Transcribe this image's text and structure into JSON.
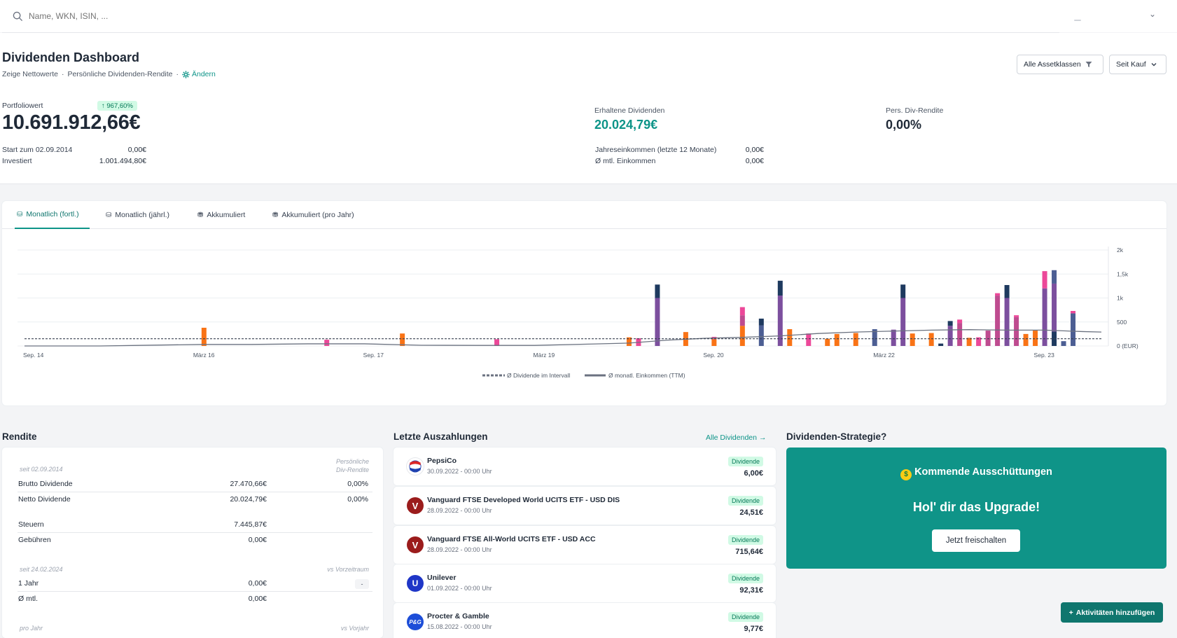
{
  "search": {
    "placeholder": "Name, WKN, ISIN, ..."
  },
  "header": {
    "title": "Dividenden Dashboard",
    "subtitle_part1": "Zeige Nettowerte",
    "subtitle_sep1": "·",
    "subtitle_part2": "Persönliche Dividenden-Rendite",
    "subtitle_sep2": "·",
    "change_link": "Ändern",
    "filter_assets": "Alle Assetklassen",
    "filter_period": "Seit Kauf"
  },
  "summary": {
    "portfolio_label": "Portfoliowert",
    "portfolio_badge": "↑ 967,60%",
    "portfolio_value": "10.691.912,66€",
    "start_label": "Start zum 02.09.2014",
    "start_value": "0,00€",
    "invested_label": "Investiert",
    "invested_value": "1.001.494,80€",
    "received_label": "Erhaltene Dividenden",
    "received_value": "20.024,79€",
    "yield_label": "Pers. Div-Rendite",
    "yield_value": "0,00%",
    "annual_label": "Jahreseinkommen (letzte 12 Monate)",
    "annual_value": "0,00€",
    "monthly_label": "Ø mtl. Einkommen",
    "monthly_value": "0,00€"
  },
  "tabs": [
    {
      "label": "Monatlich (fortl.)",
      "active": true
    },
    {
      "label": "Monatlich (jährl.)",
      "active": false
    },
    {
      "label": "Akkumuliert",
      "active": false
    },
    {
      "label": "Akkumuliert (pro Jahr)",
      "active": false
    }
  ],
  "chart_data": {
    "type": "bar",
    "x_tick_labels": [
      "Sep. 14",
      "März 16",
      "Sep. 17",
      "März 19",
      "Sep. 20",
      "März 22",
      "Sep. 23"
    ],
    "y_tick_labels": [
      "2k",
      "1,5k",
      "1k",
      "500",
      "0 (EUR)"
    ],
    "ylim": [
      0,
      2000
    ],
    "grid": true,
    "legend_position": "bottom",
    "legend": [
      "Ø Dividende im Intervall",
      "Ø monatl. Einkommen (TTM)"
    ],
    "avg_dividend_line": 150,
    "months_total": 114,
    "series_colors": [
      "#f97316",
      "#ec4899",
      "#be4b8f",
      "#7c4f9e",
      "#4c5e93",
      "#1e3a5f"
    ],
    "bars": [
      {
        "i": 19,
        "stack": [
          [
            0,
            380
          ]
        ]
      },
      {
        "i": 32,
        "stack": [
          [
            1,
            130
          ]
        ]
      },
      {
        "i": 40,
        "stack": [
          [
            0,
            260
          ]
        ]
      },
      {
        "i": 50,
        "stack": [
          [
            1,
            140
          ]
        ]
      },
      {
        "i": 64,
        "stack": [
          [
            0,
            180
          ]
        ]
      },
      {
        "i": 65,
        "stack": [
          [
            1,
            160
          ]
        ]
      },
      {
        "i": 67,
        "stack": [
          [
            3,
            1000
          ],
          [
            5,
            280
          ]
        ]
      },
      {
        "i": 70,
        "stack": [
          [
            0,
            290
          ]
        ]
      },
      {
        "i": 73,
        "stack": [
          [
            0,
            140
          ],
          [
            1,
            50
          ]
        ]
      },
      {
        "i": 76,
        "stack": [
          [
            0,
            420
          ],
          [
            2,
            220
          ],
          [
            1,
            170
          ]
        ]
      },
      {
        "i": 78,
        "stack": [
          [
            4,
            430
          ],
          [
            5,
            140
          ]
        ]
      },
      {
        "i": 80,
        "stack": [
          [
            3,
            1050
          ],
          [
            5,
            310
          ]
        ]
      },
      {
        "i": 81,
        "stack": [
          [
            0,
            350
          ]
        ]
      },
      {
        "i": 83,
        "stack": [
          [
            1,
            260
          ]
        ]
      },
      {
        "i": 85,
        "stack": [
          [
            0,
            150
          ]
        ]
      },
      {
        "i": 86,
        "stack": [
          [
            0,
            250
          ]
        ]
      },
      {
        "i": 88,
        "stack": [
          [
            0,
            270
          ]
        ]
      },
      {
        "i": 90,
        "stack": [
          [
            4,
            350
          ]
        ]
      },
      {
        "i": 92,
        "stack": [
          [
            3,
            340
          ]
        ]
      },
      {
        "i": 93,
        "stack": [
          [
            3,
            1000
          ],
          [
            5,
            280
          ]
        ]
      },
      {
        "i": 94,
        "stack": [
          [
            0,
            260
          ]
        ]
      },
      {
        "i": 96,
        "stack": [
          [
            0,
            270
          ]
        ]
      },
      {
        "i": 97,
        "stack": [
          [
            5,
            50
          ]
        ]
      },
      {
        "i": 98,
        "stack": [
          [
            3,
            420
          ],
          [
            5,
            100
          ]
        ]
      },
      {
        "i": 99,
        "stack": [
          [
            2,
            480
          ],
          [
            1,
            70
          ]
        ]
      },
      {
        "i": 100,
        "stack": [
          [
            0,
            170
          ]
        ]
      },
      {
        "i": 101,
        "stack": [
          [
            1,
            180
          ]
        ]
      },
      {
        "i": 102,
        "stack": [
          [
            2,
            320
          ]
        ]
      },
      {
        "i": 103,
        "stack": [
          [
            2,
            1050
          ],
          [
            1,
            50
          ]
        ]
      },
      {
        "i": 104,
        "stack": [
          [
            3,
            1000
          ],
          [
            5,
            270
          ]
        ]
      },
      {
        "i": 105,
        "stack": [
          [
            2,
            600
          ],
          [
            1,
            40
          ]
        ]
      },
      {
        "i": 106,
        "stack": [
          [
            0,
            250
          ]
        ]
      },
      {
        "i": 107,
        "stack": [
          [
            0,
            320
          ]
        ]
      },
      {
        "i": 108,
        "stack": [
          [
            3,
            1200
          ],
          [
            1,
            360
          ]
        ]
      },
      {
        "i": 109,
        "stack": [
          [
            5,
            300
          ],
          [
            3,
            1000
          ],
          [
            4,
            280
          ]
        ]
      },
      {
        "i": 110,
        "stack": [
          [
            4,
            100
          ]
        ]
      },
      {
        "i": 111,
        "stack": [
          [
            4,
            680
          ],
          [
            1,
            50
          ]
        ]
      }
    ],
    "ttm_line": [
      [
        0,
        0
      ],
      [
        8,
        0
      ],
      [
        12,
        12
      ],
      [
        19,
        32
      ],
      [
        24,
        32
      ],
      [
        30,
        45
      ],
      [
        36,
        45
      ],
      [
        42,
        15
      ],
      [
        48,
        12
      ],
      [
        54,
        12
      ],
      [
        60,
        40
      ],
      [
        64,
        60
      ],
      [
        68,
        120
      ],
      [
        72,
        160
      ],
      [
        76,
        180
      ],
      [
        80,
        210
      ],
      [
        84,
        260
      ],
      [
        88,
        290
      ],
      [
        92,
        310
      ],
      [
        96,
        330
      ],
      [
        100,
        340
      ],
      [
        104,
        330
      ],
      [
        108,
        330
      ],
      [
        112,
        300
      ],
      [
        114,
        290
      ]
    ]
  },
  "rendite": {
    "title": "Rendite",
    "since_label": "seit 02.09.2014",
    "col_header_line1": "Persönliche",
    "col_header_line2": "Div-Rendite",
    "brutto_label": "Brutto Dividende",
    "brutto_value": "27.470,66€",
    "brutto_pct": "0,00%",
    "netto_label": "Netto Dividende",
    "netto_value": "20.024,79€",
    "netto_pct": "0,00%",
    "tax_label": "Steuern",
    "tax_value": "7.445,87€",
    "fees_label": "Gebühren",
    "fees_value": "0,00€",
    "since2_label": "seit 24.02.2024",
    "vs_period": "vs Vorzeitraum",
    "year_label": "1 Jahr",
    "year_value": "0,00€",
    "year_pill": "-",
    "month_label": "Ø mtl.",
    "month_value": "0,00€",
    "per_year_label": "pro Jahr",
    "vs_prev_year": "vs Vorjahr"
  },
  "payouts": {
    "title": "Letzte Auszahlungen",
    "all_link": "Alle Dividenden",
    "items": [
      {
        "name": "PepsiCo",
        "date": "30.09.2022 - 00:00 Uhr",
        "badge": "Dividende",
        "amount": "6,00€",
        "logo": "pepsi-logo-icon"
      },
      {
        "name": "Vanguard FTSE Developed World UCITS ETF - USD DIS",
        "date": "28.09.2022 - 00:00 Uhr",
        "badge": "Dividende",
        "amount": "24,51€",
        "logo": "vanguard-logo-icon"
      },
      {
        "name": "Vanguard FTSE All-World UCITS ETF - USD ACC",
        "date": "28.09.2022 - 00:00 Uhr",
        "badge": "Dividende",
        "amount": "715,64€",
        "logo": "vanguard-logo-icon"
      },
      {
        "name": "Unilever",
        "date": "01.09.2022 - 00:00 Uhr",
        "badge": "Dividende",
        "amount": "92,31€",
        "logo": "unilever-logo-icon"
      },
      {
        "name": "Procter & Gamble",
        "date": "15.08.2022 - 00:00 Uhr",
        "badge": "Dividende",
        "amount": "9,77€",
        "logo": "pg-logo-icon"
      }
    ]
  },
  "strategy": {
    "title": "Dividenden-Strategie?",
    "card_heading": "Kommende Ausschüttungen",
    "card_cta": "Hol' dir das Upgrade!",
    "unlock_button": "Jetzt freischalten"
  },
  "add_activities_button": "Aktivitäten hinzufügen",
  "colors": {
    "accent": "#0d9488",
    "upgrade_bg": "#0f9488",
    "badge_bg": "#d1fae5"
  }
}
